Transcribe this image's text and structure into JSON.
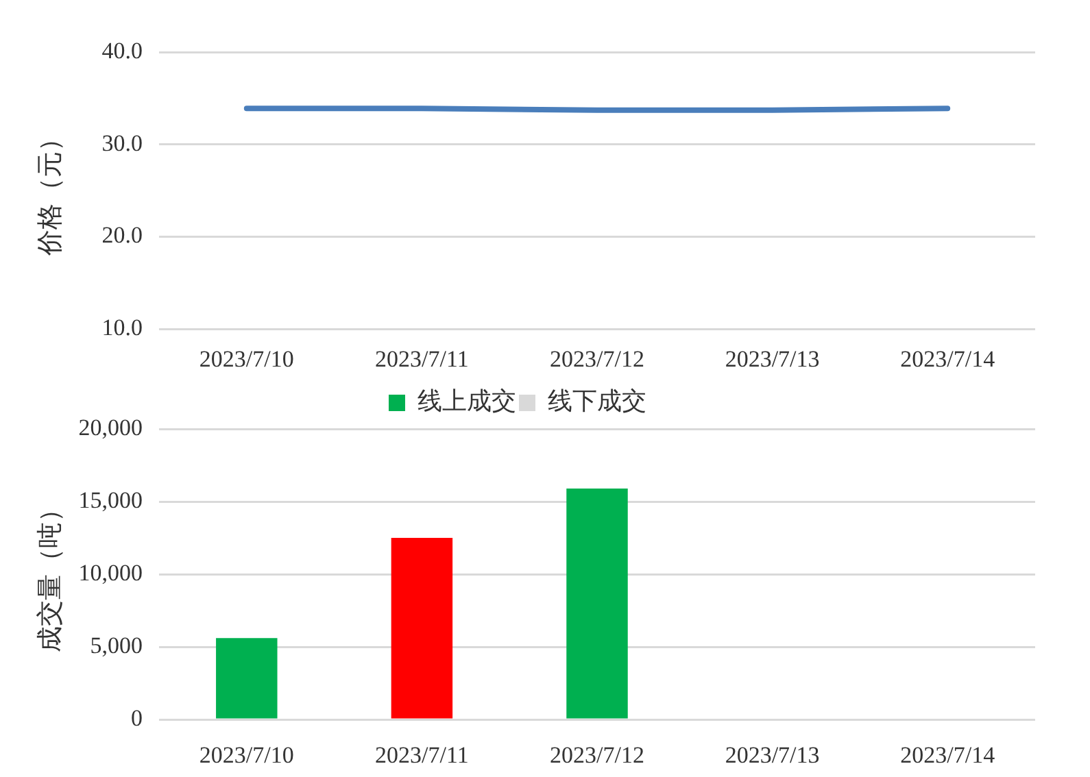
{
  "chart_data": [
    {
      "type": "line",
      "ylabel": "价格（元）",
      "categories": [
        "2023/7/10",
        "2023/7/11",
        "2023/7/12",
        "2023/7/13",
        "2023/7/14"
      ],
      "series": [
        {
          "color": "#4a7ebb",
          "values": [
            33.9,
            33.9,
            33.7,
            33.7,
            33.9
          ]
        }
      ],
      "ylim": [
        10,
        40
      ],
      "yticks": [
        {
          "value": 10,
          "label": "10.0"
        },
        {
          "value": 20,
          "label": "20.0"
        },
        {
          "value": 30,
          "label": "30.0"
        },
        {
          "value": 40,
          "label": "40.0"
        }
      ],
      "grid": "y",
      "legend": false,
      "marker": "none",
      "line_style": "solid"
    },
    {
      "type": "bar",
      "ylabel": "成交量（吨）",
      "categories": [
        "2023/7/10",
        "2023/7/11",
        "2023/7/12",
        "2023/7/13",
        "2023/7/14"
      ],
      "series": [
        {
          "name": "线上成交",
          "color": "#00b050",
          "colors": [
            "#00b050",
            "#ff0000",
            "#00b050",
            "#00b050",
            "#00b050"
          ],
          "values": [
            5600,
            12500,
            15900,
            null,
            null
          ]
        },
        {
          "name": "线下成交",
          "color": "#d9d9d9",
          "values": [
            null,
            null,
            null,
            null,
            null
          ]
        }
      ],
      "stacked": true,
      "ylim": [
        0,
        20000
      ],
      "yticks": [
        0,
        {
          "value": 5000,
          "label": "5,000"
        },
        {
          "value": 10000,
          "label": "10,000"
        },
        {
          "value": 15000,
          "label": "15,000"
        },
        {
          "value": 20000,
          "label": "20,000"
        }
      ],
      "grid": "y",
      "legend": "top"
    }
  ]
}
